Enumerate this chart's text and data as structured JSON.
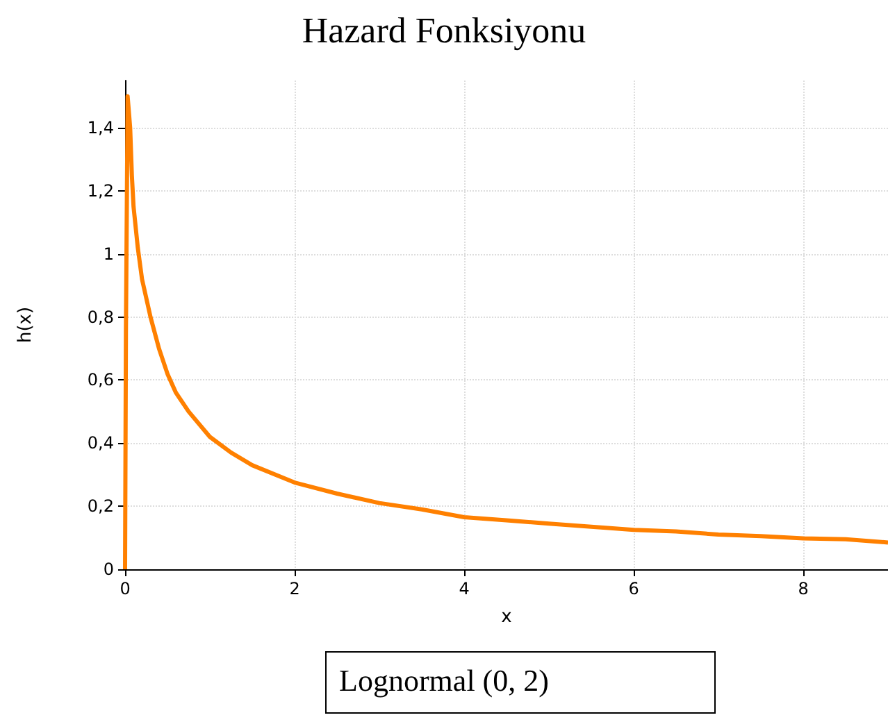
{
  "chart_data": {
    "type": "line",
    "title": "Hazard Fonksiyonu",
    "xlabel": "x",
    "ylabel": "h(x)",
    "annotations": [
      "Lognormal (0, 2)"
    ],
    "x": [
      0,
      0.01,
      0.02,
      0.03,
      0.04,
      0.06,
      0.08,
      0.1,
      0.15,
      0.2,
      0.3,
      0.4,
      0.5,
      0.6,
      0.75,
      1,
      1.25,
      1.5,
      2,
      2.5,
      3,
      3.5,
      4,
      4.5,
      5,
      5.5,
      6,
      6.5,
      7,
      7.5,
      8,
      8.5,
      9
    ],
    "series": [
      {
        "color": "#ff8000",
        "values": [
          0,
          0.75,
          0.75,
          1.5,
          1.5,
          1.4,
          1.25,
          1.15,
          1.02,
          0.92,
          0.8,
          0.7,
          0.62,
          0.56,
          0.5,
          0.42,
          0.37,
          0.33,
          0.275,
          0.24,
          0.21,
          0.19,
          0.165,
          0.155,
          0.145,
          0.135,
          0.125,
          0.12,
          0.11,
          0.105,
          0.098,
          0.095,
          0.085
        ]
      }
    ],
    "xlim": [
      0,
      9
    ],
    "xticks": [
      0,
      2,
      4,
      6,
      8
    ],
    "ylim": [
      0,
      1.55
    ],
    "yticks": [
      0,
      {
        "value": 0.2,
        "label": "0,2"
      },
      {
        "value": 0.4,
        "label": "0,4"
      },
      {
        "value": 0.6,
        "label": "0,6"
      },
      {
        "value": 0.8,
        "label": "0,8"
      },
      1,
      {
        "value": 1.2,
        "label": "1,2"
      },
      {
        "value": 1.4,
        "label": "1,4"
      }
    ],
    "grid": true,
    "marker": "none",
    "line_style": "solid"
  }
}
